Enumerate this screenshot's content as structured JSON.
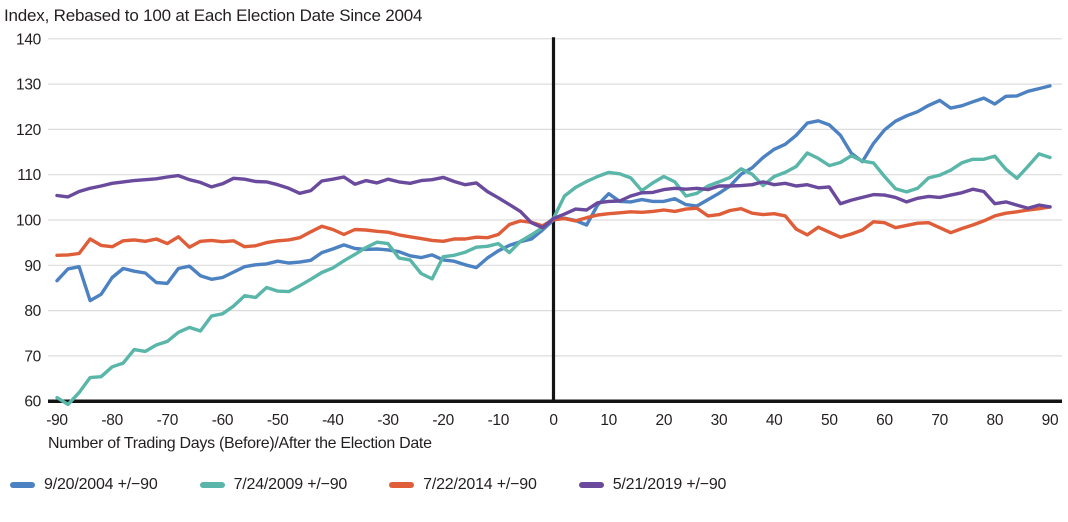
{
  "chart_data": {
    "type": "line",
    "title": "Index, Rebased to 100 at Each Election Date Since 2004",
    "xlabel": "Number of Trading Days (Before)/After the Election Date",
    "ylabel": "",
    "xlim": [
      -90,
      90
    ],
    "ylim": [
      60,
      140
    ],
    "x_ticks": [
      -90,
      -80,
      -70,
      -60,
      -50,
      -40,
      -30,
      -20,
      -10,
      0,
      10,
      20,
      30,
      40,
      50,
      60,
      70,
      80,
      90
    ],
    "y_ticks": [
      60,
      70,
      80,
      90,
      100,
      110,
      120,
      130,
      140
    ],
    "grid": "horizontal",
    "legend_position": "bottom-left",
    "election_marker_x": 0,
    "colors": {
      "grid": "#dcdcdc",
      "axis": "#141414",
      "text": "#231f20"
    },
    "x": [
      -90,
      -88,
      -86,
      -84,
      -82,
      -80,
      -78,
      -76,
      -74,
      -72,
      -70,
      -68,
      -66,
      -64,
      -62,
      -60,
      -58,
      -56,
      -54,
      -52,
      -50,
      -48,
      -46,
      -44,
      -42,
      -40,
      -38,
      -36,
      -34,
      -32,
      -30,
      -28,
      -26,
      -24,
      -22,
      -20,
      -18,
      -16,
      -14,
      -12,
      -10,
      -8,
      -6,
      -4,
      -2,
      0,
      2,
      4,
      6,
      8,
      10,
      12,
      14,
      16,
      18,
      20,
      22,
      24,
      26,
      28,
      30,
      32,
      34,
      36,
      38,
      40,
      42,
      44,
      46,
      48,
      50,
      52,
      54,
      56,
      58,
      60,
      62,
      64,
      66,
      68,
      70,
      72,
      74,
      76,
      78,
      80,
      82,
      84,
      86,
      88,
      90
    ],
    "series": [
      {
        "key": "2004",
        "name": "9/20/2004 +/−90",
        "color": "#4c81c2",
        "values": [
          86.6,
          89.2,
          89.7,
          82.2,
          83.6,
          87.3,
          89.3,
          88.7,
          88.3,
          86.2,
          86.0,
          89.3,
          89.8,
          87.7,
          86.9,
          87.3,
          88.5,
          89.7,
          90.1,
          90.3,
          90.9,
          90.5,
          90.7,
          91.1,
          92.8,
          93.6,
          94.5,
          93.7,
          93.5,
          93.6,
          93.4,
          93.0,
          92.1,
          91.7,
          92.3,
          91.2,
          90.9,
          90.1,
          89.5,
          91.6,
          93.2,
          94.4,
          95.2,
          95.8,
          97.8,
          100.0,
          100.4,
          99.9,
          98.9,
          103.3,
          105.8,
          104.1,
          104.0,
          104.5,
          104.1,
          104.1,
          104.7,
          103.4,
          103.1,
          104.5,
          105.9,
          107.5,
          110.1,
          111.5,
          113.8,
          115.6,
          116.7,
          118.7,
          121.4,
          121.9,
          121.0,
          118.7,
          114.7,
          112.9,
          116.9,
          119.9,
          121.8,
          123.0,
          123.9,
          125.3,
          126.4,
          124.7,
          125.2,
          126.1,
          126.9,
          125.6,
          127.3,
          127.4,
          128.4,
          129.0,
          129.6
        ]
      },
      {
        "key": "2009",
        "name": "7/24/2009 +/−90",
        "color": "#59b6a9",
        "values": [
          60.8,
          59.3,
          61.9,
          65.2,
          65.4,
          67.6,
          68.4,
          71.4,
          71.0,
          72.4,
          73.2,
          75.2,
          76.3,
          75.5,
          78.8,
          79.3,
          81.0,
          83.3,
          82.9,
          85.1,
          84.3,
          84.2,
          85.5,
          86.9,
          88.4,
          89.4,
          91.0,
          92.4,
          93.9,
          95.1,
          94.8,
          91.6,
          91.2,
          88.2,
          87.0,
          91.9,
          92.2,
          92.9,
          94.0,
          94.2,
          94.8,
          92.8,
          95.3,
          96.7,
          98.3,
          100.4,
          105.3,
          107.2,
          108.5,
          109.6,
          110.5,
          110.2,
          109.3,
          106.5,
          108.2,
          109.6,
          108.4,
          105.3,
          105.9,
          107.5,
          108.4,
          109.4,
          111.3,
          110.1,
          107.6,
          109.6,
          110.5,
          111.8,
          114.8,
          113.6,
          112.0,
          112.7,
          114.2,
          113.0,
          112.6,
          109.6,
          106.9,
          106.2,
          107.0,
          109.3,
          109.9,
          111.0,
          112.6,
          113.4,
          113.4,
          114.1,
          111.2,
          109.2,
          111.8,
          114.6,
          113.8
        ]
      },
      {
        "key": "2014",
        "name": "7/22/2014 +/−90",
        "color": "#df5d38",
        "values": [
          92.2,
          92.3,
          92.6,
          95.8,
          94.4,
          94.1,
          95.4,
          95.6,
          95.3,
          95.8,
          94.8,
          96.3,
          94.0,
          95.3,
          95.5,
          95.2,
          95.4,
          94.1,
          94.3,
          95.0,
          95.4,
          95.6,
          96.1,
          97.4,
          98.6,
          97.9,
          96.8,
          97.9,
          97.8,
          97.5,
          97.3,
          96.7,
          96.3,
          95.9,
          95.5,
          95.3,
          95.8,
          95.8,
          96.2,
          96.1,
          96.8,
          99.0,
          99.8,
          99.5,
          98.7,
          100.1,
          100.3,
          99.8,
          100.5,
          101.1,
          101.4,
          101.6,
          101.8,
          101.7,
          101.9,
          102.2,
          101.9,
          102.4,
          102.6,
          100.9,
          101.2,
          102.1,
          102.5,
          101.5,
          101.2,
          101.4,
          100.9,
          98.0,
          96.7,
          98.4,
          97.3,
          96.2,
          96.9,
          97.8,
          99.6,
          99.4,
          98.3,
          98.8,
          99.3,
          99.4,
          98.3,
          97.2,
          98.1,
          98.9,
          99.8,
          100.9,
          101.5,
          101.8,
          102.2,
          102.5,
          102.9
        ]
      },
      {
        "key": "2019",
        "name": "5/21/2019 +/−90",
        "color": "#6a4a9d",
        "values": [
          105.4,
          105.1,
          106.3,
          107.0,
          107.5,
          108.1,
          108.4,
          108.7,
          108.9,
          109.1,
          109.5,
          109.8,
          108.9,
          108.3,
          107.3,
          108.0,
          109.2,
          109.0,
          108.5,
          108.4,
          107.8,
          107.0,
          105.9,
          106.5,
          108.6,
          109.0,
          109.5,
          107.9,
          108.7,
          108.2,
          109.0,
          108.4,
          108.1,
          108.7,
          108.9,
          109.4,
          108.5,
          107.8,
          108.2,
          106.3,
          104.9,
          103.4,
          101.9,
          99.4,
          98.3,
          100.3,
          101.3,
          102.4,
          102.2,
          103.8,
          104.1,
          104.2,
          105.3,
          106.0,
          106.1,
          106.7,
          107.0,
          106.8,
          107.0,
          106.7,
          107.5,
          107.5,
          107.6,
          107.8,
          108.4,
          107.8,
          108.1,
          107.5,
          107.8,
          107.1,
          107.3,
          103.6,
          104.4,
          105.0,
          105.6,
          105.5,
          105.0,
          104.0,
          104.8,
          105.2,
          105.0,
          105.5,
          106.0,
          106.8,
          106.3,
          103.6,
          104.0,
          103.3,
          102.6,
          103.3,
          102.9
        ]
      }
    ]
  }
}
